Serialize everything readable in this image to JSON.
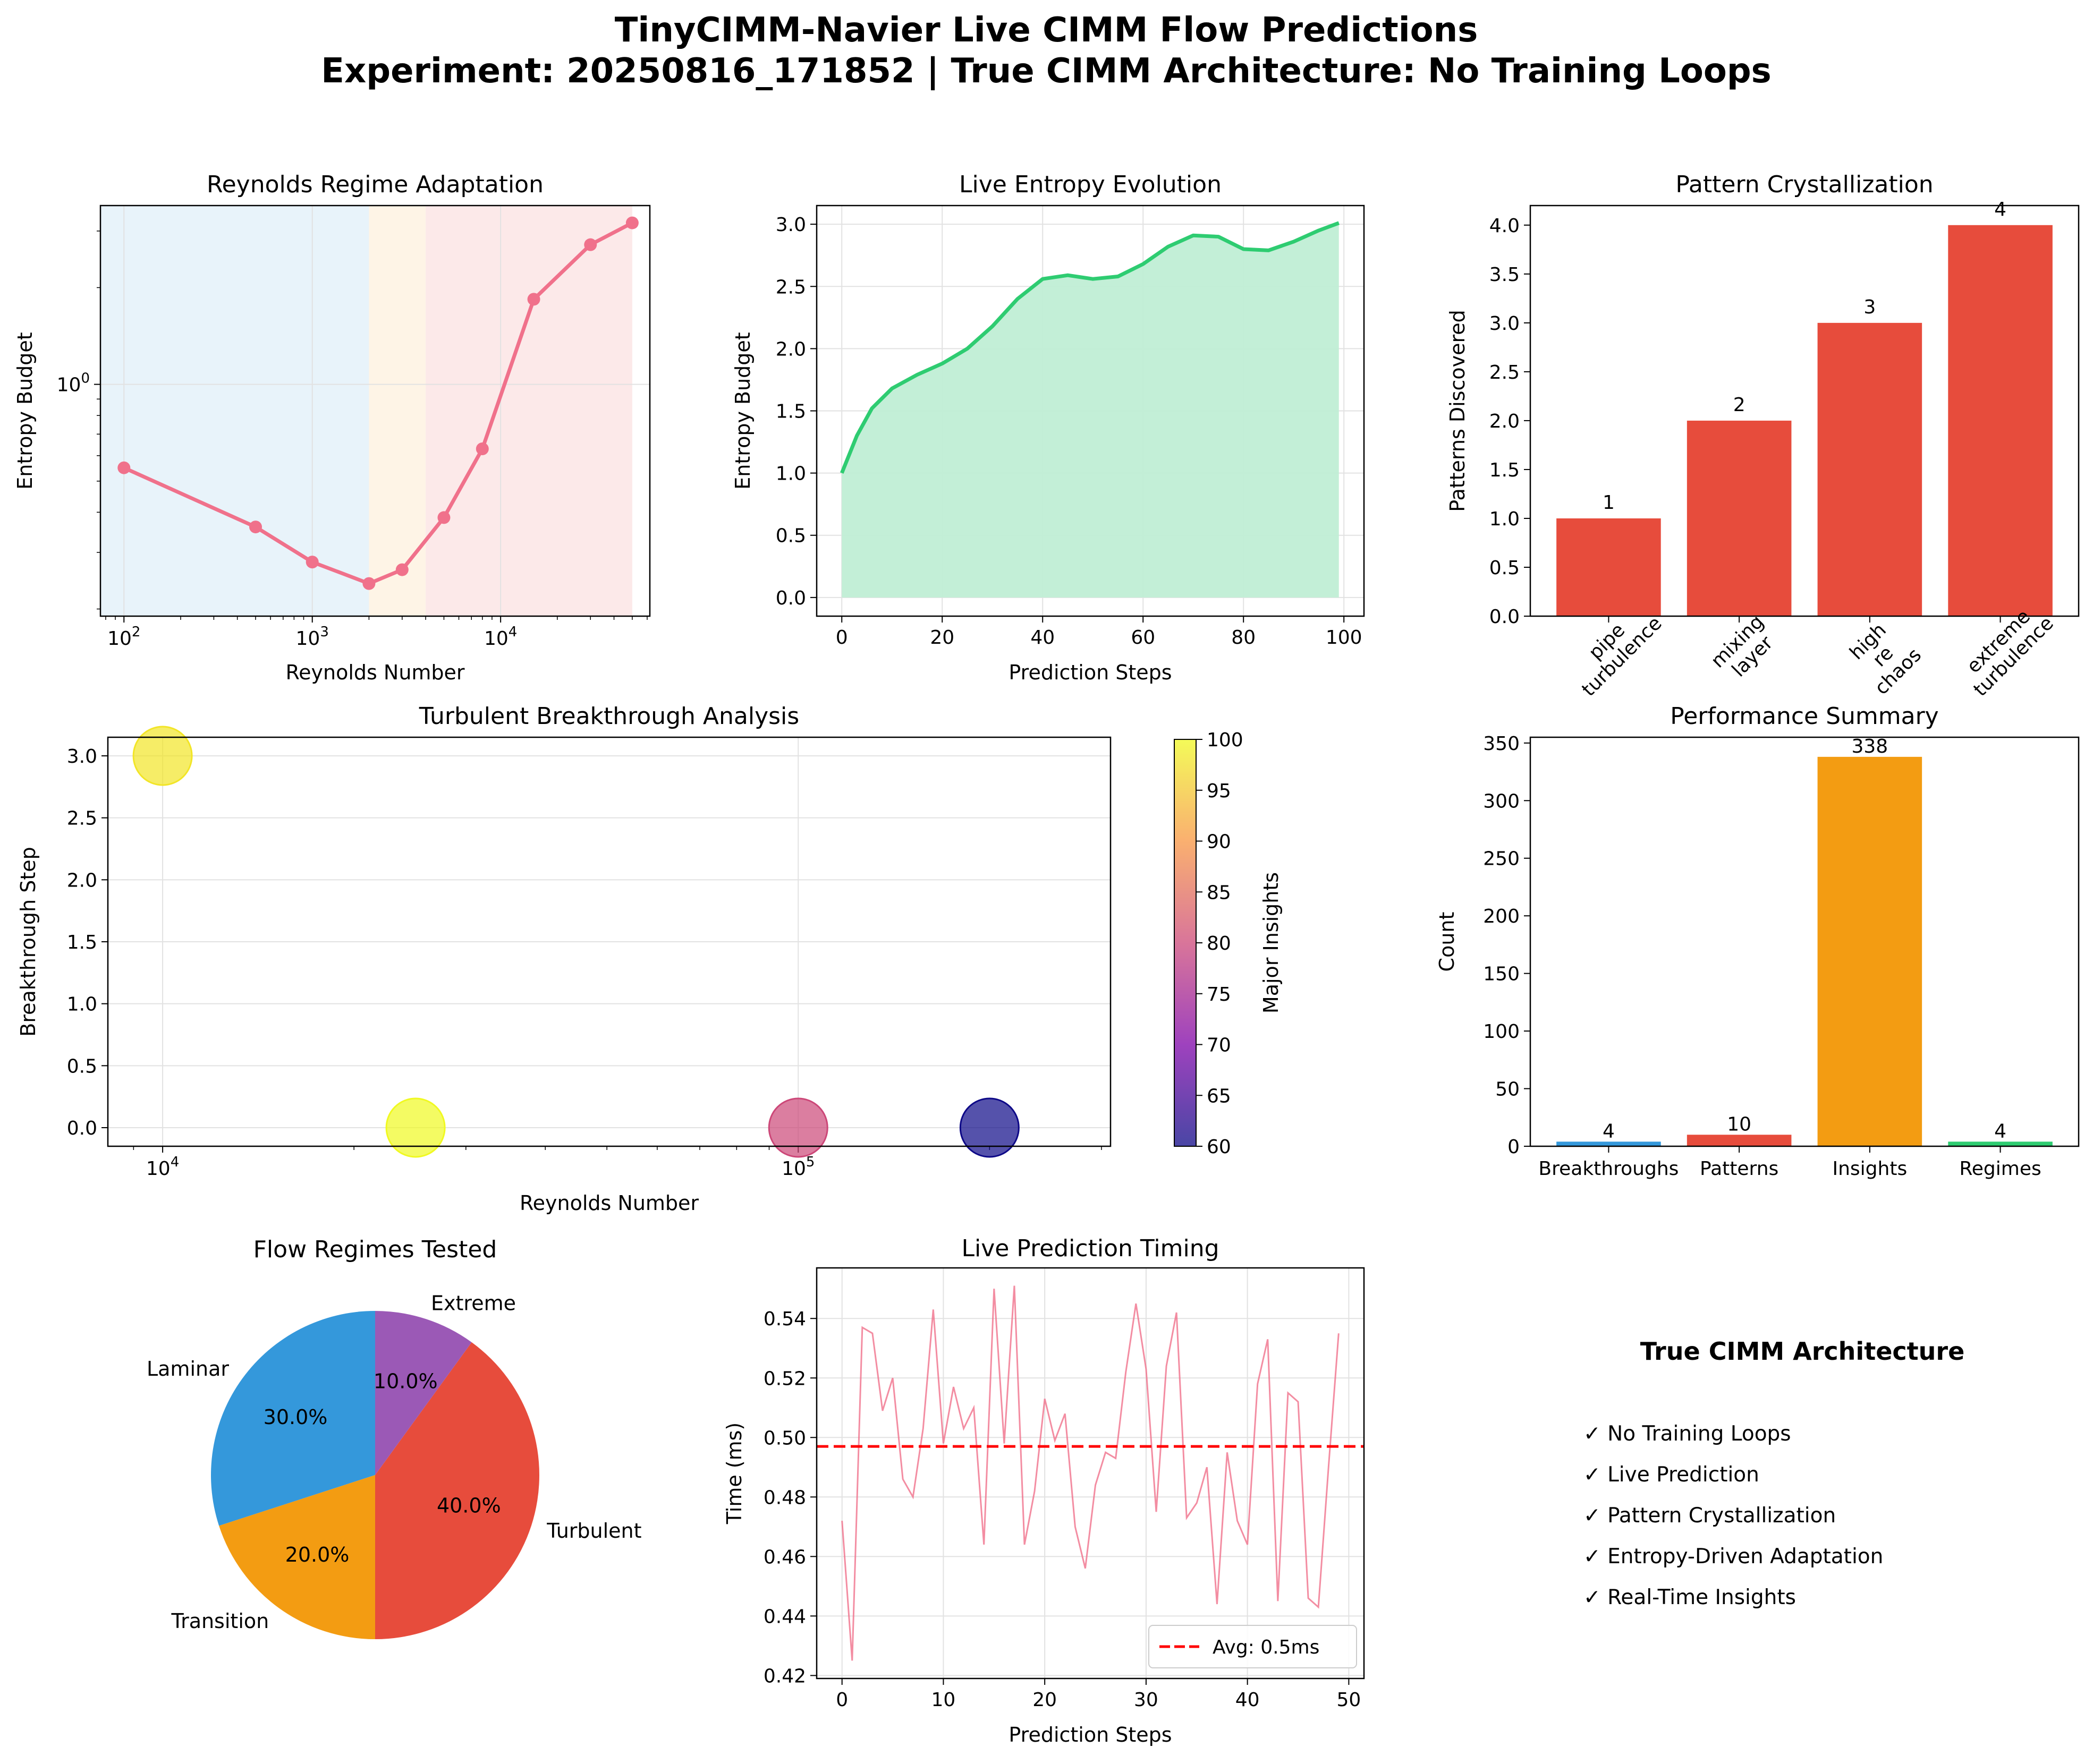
{
  "figure": {
    "title_line1": "TinyCIMM-Navier Live CIMM Flow Predictions",
    "title_line2": "Experiment: 20250816_171852 | True CIMM Architecture: No Training Loops"
  },
  "colors": {
    "pink": "#f0718b",
    "green": "#2ecc71",
    "green_fill": "#c0eed5",
    "red": "#e74c3c",
    "blue": "#3498db",
    "orange": "#f39c12",
    "purple": "#9b59b6",
    "bg_blue": "#e8f3fa",
    "bg_orange": "#fef4e6",
    "bg_red": "#fce9e9",
    "grid": "#e2e2e2",
    "avg_line": "#ff0000"
  },
  "chart_data": [
    {
      "id": "reynolds",
      "type": "line",
      "title": "Reynolds Regime Adaptation",
      "xlabel": "Reynolds Number",
      "ylabel": "Entropy Budget",
      "x_scale": "log",
      "y_scale": "log",
      "xlim": [
        75,
        62000
      ],
      "ylim": [
        0.19,
        3.6
      ],
      "x_ticks": [
        {
          "value": 100,
          "base": "10",
          "exp": "2"
        },
        {
          "value": 1000,
          "base": "10",
          "exp": "3"
        },
        {
          "value": 10000,
          "base": "10",
          "exp": "4"
        }
      ],
      "y_ticks": [
        {
          "value": 1,
          "base": "10",
          "exp": "0"
        }
      ],
      "regime_bands": [
        {
          "from": 75,
          "to": 2000,
          "color": "bg_blue"
        },
        {
          "from": 2000,
          "to": 4000,
          "color": "bg_orange"
        },
        {
          "from": 4000,
          "to": 50000,
          "color": "bg_red"
        }
      ],
      "series": [
        {
          "x": [
            100,
            500,
            1000,
            2000,
            3000,
            5000,
            8000,
            15000,
            30000,
            50000
          ],
          "y": [
            0.55,
            0.36,
            0.28,
            0.24,
            0.265,
            0.385,
            0.63,
            1.84,
            2.72,
            3.18
          ]
        }
      ],
      "grid": true
    },
    {
      "id": "entropy",
      "type": "area",
      "title": "Live Entropy Evolution",
      "xlabel": "Prediction Steps",
      "ylabel": "Entropy Budget",
      "xlim": [
        -5,
        104
      ],
      "ylim": [
        -0.15,
        3.15
      ],
      "x_ticks": [
        0,
        20,
        40,
        60,
        80,
        100
      ],
      "y_ticks": [
        "0.0",
        "0.5",
        "1.0",
        "1.5",
        "2.0",
        "2.5",
        "3.0"
      ],
      "series": [
        {
          "x": [
            0,
            3,
            6,
            10,
            15,
            20,
            25,
            30,
            35,
            40,
            45,
            50,
            55,
            60,
            65,
            70,
            75,
            80,
            85,
            90,
            95,
            99
          ],
          "y": [
            1.0,
            1.3,
            1.52,
            1.68,
            1.79,
            1.88,
            2.0,
            2.18,
            2.4,
            2.56,
            2.59,
            2.56,
            2.58,
            2.68,
            2.82,
            2.91,
            2.9,
            2.8,
            2.79,
            2.86,
            2.95,
            3.01
          ]
        }
      ],
      "grid": true
    },
    {
      "id": "patterns",
      "type": "bar",
      "title": "Pattern Crystallization",
      "ylabel": "Patterns Discovered",
      "categories": [
        [
          "pipe",
          "turbulence"
        ],
        [
          "mixing",
          "layer"
        ],
        [
          "high",
          "re",
          "chaos"
        ],
        [
          "extreme",
          "turbulence"
        ]
      ],
      "values": [
        1,
        2,
        3,
        4
      ],
      "value_labels": [
        "1",
        "2",
        "3",
        "4"
      ],
      "ylim": [
        0,
        4.2
      ],
      "y_ticks": [
        "0.0",
        "0.5",
        "1.0",
        "1.5",
        "2.0",
        "2.5",
        "3.0",
        "3.5",
        "4.0"
      ]
    },
    {
      "id": "breakthrough",
      "type": "scatter",
      "title": "Turbulent Breakthrough Analysis",
      "xlabel": "Reynolds Number",
      "ylabel": "Breakthrough Step",
      "x_scale": "log",
      "xlim": [
        8200,
        310000
      ],
      "ylim": [
        -0.15,
        3.15
      ],
      "x_ticks": [
        {
          "value": 10000,
          "base": "10",
          "exp": "4"
        },
        {
          "value": 100000,
          "base": "10",
          "exp": "5"
        }
      ],
      "y_ticks": [
        "0.0",
        "0.5",
        "1.0",
        "1.5",
        "2.0",
        "2.5",
        "3.0"
      ],
      "points": [
        {
          "x": 10000,
          "y": 3,
          "insights": 98
        },
        {
          "x": 25000,
          "y": 0,
          "insights": 100
        },
        {
          "x": 100000,
          "y": 0,
          "insights": 80
        },
        {
          "x": 200000,
          "y": 0,
          "insights": 60
        }
      ],
      "colorbar": {
        "label": "Major Insights",
        "range": [
          60,
          100
        ],
        "ticks": [
          60,
          65,
          70,
          75,
          80,
          85,
          90,
          95,
          100
        ]
      },
      "grid": true
    },
    {
      "id": "performance",
      "type": "bar",
      "title": "Performance Summary",
      "ylabel": "Count",
      "categories": [
        "Breakthroughs",
        "Patterns",
        "Insights",
        "Regimes"
      ],
      "values": [
        4,
        10,
        338,
        4
      ],
      "value_labels": [
        "4",
        "10",
        "338",
        "4"
      ],
      "bar_colors": [
        "blue",
        "red",
        "orange",
        "green"
      ],
      "ylim": [
        0,
        355
      ],
      "y_ticks": [
        0,
        50,
        100,
        150,
        200,
        250,
        300,
        350
      ]
    },
    {
      "id": "regimes",
      "type": "pie",
      "title": "Flow Regimes Tested",
      "slices": [
        {
          "label": "Laminar",
          "value": 30,
          "pct": "30.0%",
          "color": "blue"
        },
        {
          "label": "Transition",
          "value": 20,
          "pct": "20.0%",
          "color": "orange"
        },
        {
          "label": "Turbulent",
          "value": 40,
          "pct": "40.0%",
          "color": "red"
        },
        {
          "label": "Extreme",
          "value": 10,
          "pct": "10.0%",
          "color": "purple"
        }
      ]
    },
    {
      "id": "timing",
      "type": "line",
      "title": "Live Prediction Timing",
      "xlabel": "Prediction Steps",
      "ylabel": "Time (ms)",
      "xlim": [
        -2.5,
        51.5
      ],
      "ylim": [
        0.419,
        0.557
      ],
      "x_ticks": [
        0,
        10,
        20,
        30,
        40,
        50
      ],
      "y_ticks": [
        "0.42",
        "0.44",
        "0.46",
        "0.48",
        "0.50",
        "0.52",
        "0.54"
      ],
      "series": [
        {
          "x": [
            0,
            1,
            2,
            3,
            4,
            5,
            6,
            7,
            8,
            9,
            10,
            11,
            12,
            13,
            14,
            15,
            16,
            17,
            18,
            19,
            20,
            21,
            22,
            23,
            24,
            25,
            26,
            27,
            28,
            29,
            30,
            31,
            32,
            33,
            34,
            35,
            36,
            37,
            38,
            39,
            40,
            41,
            42,
            43,
            44,
            45,
            46,
            47,
            48,
            49
          ],
          "y": [
            0.472,
            0.425,
            0.537,
            0.535,
            0.509,
            0.52,
            0.486,
            0.48,
            0.503,
            0.543,
            0.498,
            0.517,
            0.503,
            0.51,
            0.464,
            0.55,
            0.498,
            0.551,
            0.464,
            0.482,
            0.513,
            0.499,
            0.508,
            0.47,
            0.456,
            0.484,
            0.495,
            0.493,
            0.522,
            0.545,
            0.523,
            0.475,
            0.524,
            0.542,
            0.473,
            0.478,
            0.49,
            0.444,
            0.495,
            0.472,
            0.464,
            0.518,
            0.533,
            0.445,
            0.515,
            0.512,
            0.446,
            0.443,
            0.49,
            0.535
          ]
        }
      ],
      "avg": {
        "value": 0.497,
        "label": "Avg: 0.5ms"
      },
      "grid": true
    }
  ],
  "architecture": {
    "title": "True CIMM Architecture",
    "items": [
      "✓ No Training Loops",
      "✓ Live Prediction",
      "✓ Pattern Crystallization",
      "✓ Entropy-Driven Adaptation",
      "✓ Real-Time Insights"
    ]
  }
}
